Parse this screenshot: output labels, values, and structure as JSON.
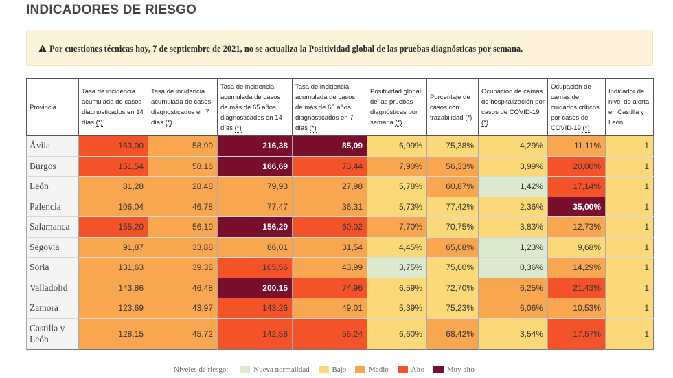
{
  "page": {
    "title": "INDICADORES DE RIESGO"
  },
  "alert": {
    "icon": "warning-icon",
    "text": "Por cuestiones técnicas hoy, 7 de septiembre de 2021, no se actualiza la Positividad global de las pruebas diagnósticas por semana."
  },
  "table": {
    "headers": {
      "provincia": "Provincia",
      "c1": "Tasa de incidencia acumulada de casos diagnosticados en 14 días",
      "c2": "Tasa de incidencia acumulada de casos diagnosticados en 7 días",
      "c3": "Tasa de incidencia acumulada de casos de más de 65 años diagnosticados en 14 días",
      "c4": "Tasa de incidencia acumulada de casos de más de 65 años diagnosticados en 7 días",
      "c5": "Positividad global de las pruebas diagnósticas por semana",
      "c6": "Porcentaje de casos con trazabilidad",
      "c7": "Ocupación de camas de hospitalización por casos de COVID-19",
      "c8": "Ocupación de camas de cuidados críticos por casos de COVID-19",
      "c9": "Indicador de nivel de alerta en Castilla y León",
      "note": "(*)"
    },
    "rows": [
      {
        "name": "Ávila",
        "cells": [
          [
            "163,00",
            "alto"
          ],
          [
            "58,99",
            "medio"
          ],
          [
            "216,38",
            "muyalto"
          ],
          [
            "85,09",
            "muyalto"
          ],
          [
            "6,99%",
            "bajo"
          ],
          [
            "75,38%",
            "bajo"
          ],
          [
            "4,29%",
            "bajo"
          ],
          [
            "11,11%",
            "medio"
          ],
          [
            "1",
            "bajo"
          ]
        ]
      },
      {
        "name": "Burgos",
        "cells": [
          [
            "151,54",
            "alto"
          ],
          [
            "58,16",
            "medio"
          ],
          [
            "166,69",
            "muyalto"
          ],
          [
            "73,44",
            "alto"
          ],
          [
            "7,90%",
            "medio"
          ],
          [
            "56,33%",
            "medio"
          ],
          [
            "3,99%",
            "bajo"
          ],
          [
            "20,00%",
            "alto"
          ],
          [
            "1",
            "bajo"
          ]
        ]
      },
      {
        "name": "León",
        "cells": [
          [
            "81,28",
            "medio"
          ],
          [
            "28,48",
            "medio"
          ],
          [
            "79,93",
            "medio"
          ],
          [
            "27,98",
            "medio"
          ],
          [
            "5,78%",
            "bajo"
          ],
          [
            "60,87%",
            "medio"
          ],
          [
            "1,42%",
            "nn"
          ],
          [
            "17,14%",
            "alto"
          ],
          [
            "1",
            "bajo"
          ]
        ]
      },
      {
        "name": "Palencia",
        "cells": [
          [
            "106,04",
            "medio"
          ],
          [
            "46,78",
            "medio"
          ],
          [
            "77,47",
            "medio"
          ],
          [
            "36,31",
            "medio"
          ],
          [
            "5,73%",
            "bajo"
          ],
          [
            "77,42%",
            "bajo"
          ],
          [
            "2,36%",
            "bajo"
          ],
          [
            "35,00%",
            "muyalto"
          ],
          [
            "1",
            "bajo"
          ]
        ]
      },
      {
        "name": "Salamanca",
        "cells": [
          [
            "155,20",
            "alto"
          ],
          [
            "56,19",
            "medio"
          ],
          [
            "156,29",
            "muyalto"
          ],
          [
            "60,02",
            "alto"
          ],
          [
            "7,70%",
            "medio"
          ],
          [
            "70,75%",
            "bajo"
          ],
          [
            "3,83%",
            "bajo"
          ],
          [
            "12,73%",
            "medio"
          ],
          [
            "1",
            "bajo"
          ]
        ]
      },
      {
        "name": "Segovia",
        "cells": [
          [
            "91,87",
            "medio"
          ],
          [
            "33,88",
            "medio"
          ],
          [
            "86,01",
            "medio"
          ],
          [
            "31,54",
            "medio"
          ],
          [
            "4,45%",
            "bajo"
          ],
          [
            "65,08%",
            "medio"
          ],
          [
            "1,23%",
            "nn"
          ],
          [
            "9,68%",
            "bajo"
          ],
          [
            "1",
            "bajo"
          ]
        ]
      },
      {
        "name": "Soria",
        "cells": [
          [
            "131,63",
            "medio"
          ],
          [
            "39,38",
            "medio"
          ],
          [
            "105,56",
            "alto"
          ],
          [
            "43,99",
            "medio"
          ],
          [
            "3,75%",
            "nn"
          ],
          [
            "75,00%",
            "bajo"
          ],
          [
            "0,36%",
            "nn"
          ],
          [
            "14,29%",
            "medio"
          ],
          [
            "1",
            "bajo"
          ]
        ]
      },
      {
        "name": "Valladolid",
        "cells": [
          [
            "143,86",
            "medio"
          ],
          [
            "46,48",
            "medio"
          ],
          [
            "200,15",
            "muyalto"
          ],
          [
            "74,96",
            "alto"
          ],
          [
            "6,59%",
            "bajo"
          ],
          [
            "72,70%",
            "bajo"
          ],
          [
            "6,25%",
            "medio"
          ],
          [
            "21,43%",
            "alto"
          ],
          [
            "1",
            "bajo"
          ]
        ]
      },
      {
        "name": "Zamora",
        "cells": [
          [
            "123,69",
            "medio"
          ],
          [
            "43,97",
            "medio"
          ],
          [
            "143,26",
            "alto"
          ],
          [
            "49,01",
            "medio"
          ],
          [
            "5,39%",
            "bajo"
          ],
          [
            "75,23%",
            "bajo"
          ],
          [
            "6,06%",
            "medio"
          ],
          [
            "10,53%",
            "medio"
          ],
          [
            "1",
            "bajo"
          ]
        ]
      },
      {
        "name": "Castilla y León",
        "cells": [
          [
            "128,15",
            "medio"
          ],
          [
            "45,72",
            "medio"
          ],
          [
            "142,58",
            "alto"
          ],
          [
            "55,24",
            "alto"
          ],
          [
            "6,60%",
            "bajo"
          ],
          [
            "68,42%",
            "medio"
          ],
          [
            "3,54%",
            "bajo"
          ],
          [
            "17,57%",
            "alto"
          ],
          [
            "1",
            "bajo"
          ]
        ]
      }
    ]
  },
  "legend": {
    "title": "Niveles de riesgo:",
    "items": [
      {
        "label": "Nueva normalidad",
        "color": "#dbeacf"
      },
      {
        "label": "Bajo",
        "color": "#fcd978"
      },
      {
        "label": "Medio",
        "color": "#f9a650"
      },
      {
        "label": "Alto",
        "color": "#f4532a"
      },
      {
        "label": "Muy alto",
        "color": "#7a0f2d"
      }
    ]
  }
}
